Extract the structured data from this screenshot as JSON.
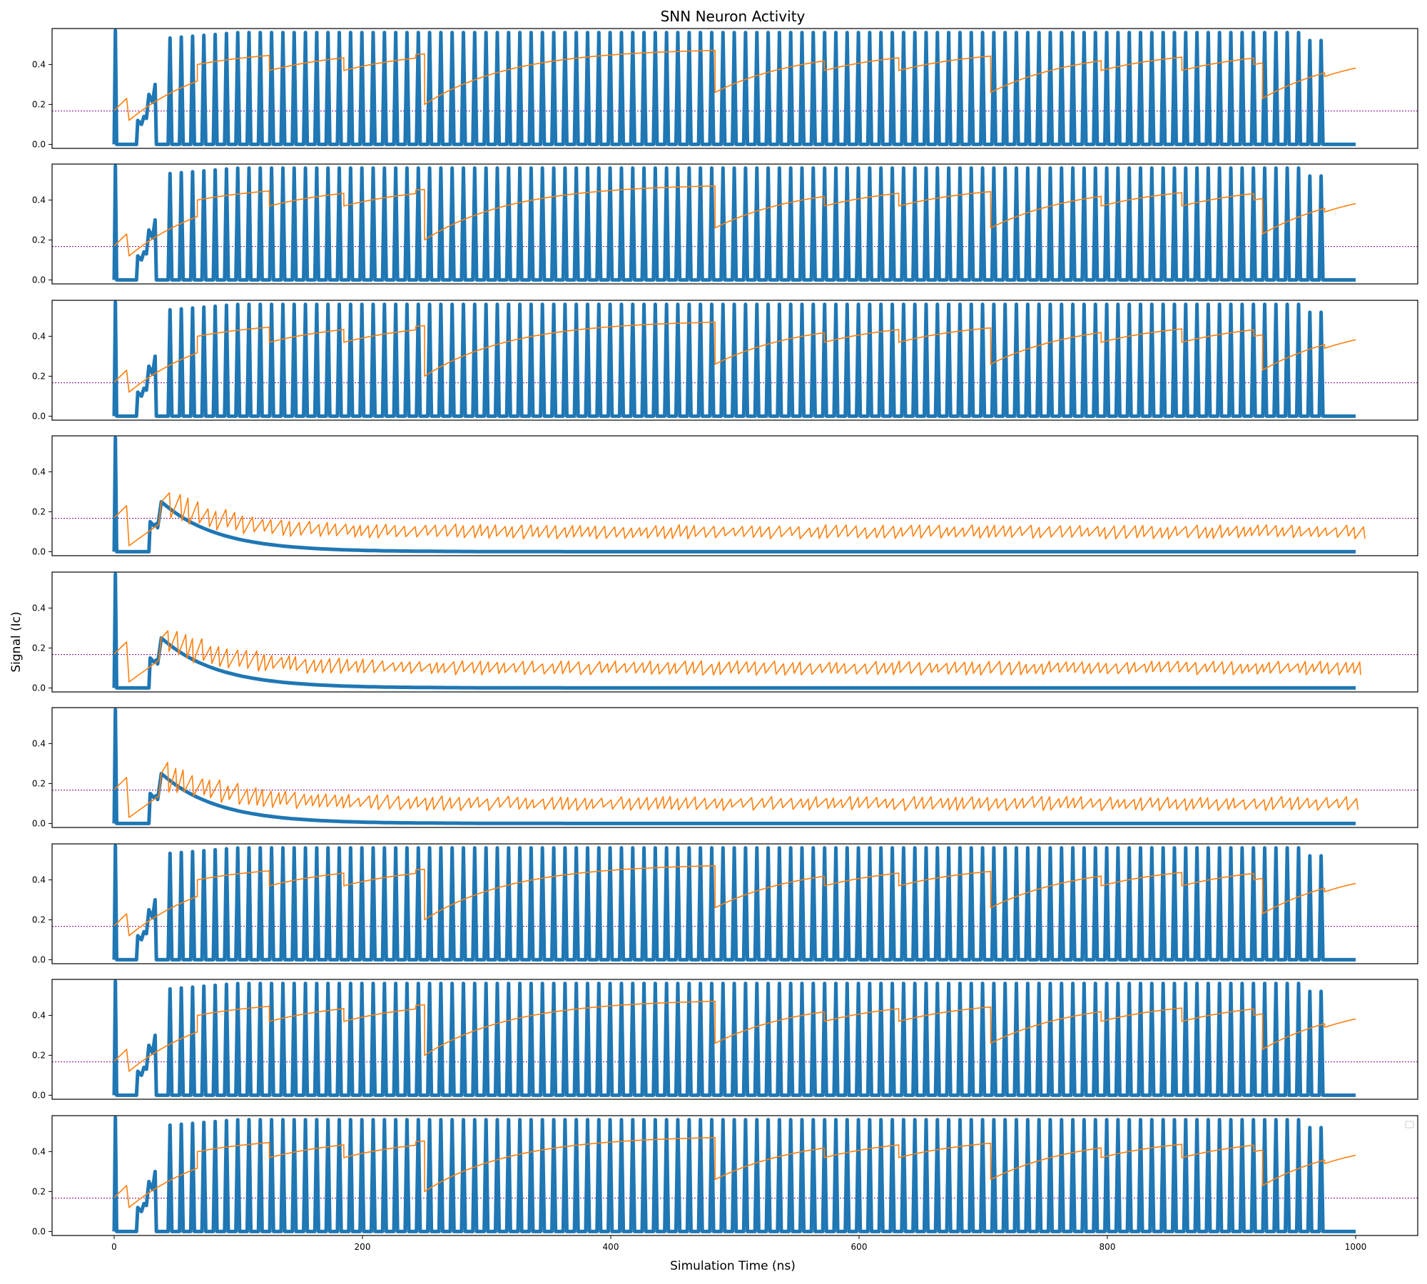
{
  "chart_data": {
    "type": "line",
    "title": "SNN Neuron Activity",
    "xlabel": "Simulation Time (ns)",
    "ylabel": "Signal (Ic)",
    "xlim": [
      -50,
      1050
    ],
    "ylim": [
      -0.02,
      0.58
    ],
    "x_ticks": [
      0,
      200,
      400,
      600,
      800,
      1000
    ],
    "y_ticks": [
      0.0,
      0.2,
      0.4
    ],
    "x_tick_labels": [
      "0",
      "200",
      "400",
      "600",
      "800",
      "1000"
    ],
    "y_tick_labels": [
      "0.0",
      "0.2",
      "0.4"
    ],
    "threshold": 0.167,
    "grid": false,
    "legend": "top-right (empty)",
    "colors": {
      "spikes": "#1f77b4",
      "membrane": "#ff7f0e",
      "threshold": "#800080"
    },
    "panels": [
      {
        "mode": "spiking",
        "first_spike_ns": 45,
        "period_ns": 9.09,
        "spike_end_ns": 980,
        "membrane_reset_ns": [
          67,
          125,
          185,
          243,
          250,
          484,
          572,
          632,
          706,
          795,
          860,
          918,
          925,
          975
        ]
      },
      {
        "mode": "spiking",
        "first_spike_ns": 45,
        "period_ns": 9.09,
        "spike_end_ns": 980,
        "membrane_reset_ns": [
          67,
          125,
          185,
          243,
          250,
          484,
          572,
          632,
          706,
          795,
          860,
          918,
          925,
          975
        ]
      },
      {
        "mode": "spiking",
        "first_spike_ns": 45,
        "period_ns": 9.09,
        "spike_end_ns": 980,
        "membrane_reset_ns": [
          67,
          125,
          185,
          243,
          250,
          484,
          572,
          632,
          706,
          795,
          860,
          918,
          925,
          975
        ]
      },
      {
        "mode": "decay",
        "peak_ns": 38,
        "peak_value": 0.25,
        "decay_tau_ns": 45
      },
      {
        "mode": "decay",
        "peak_ns": 38,
        "peak_value": 0.25,
        "decay_tau_ns": 45
      },
      {
        "mode": "decay",
        "peak_ns": 38,
        "peak_value": 0.25,
        "decay_tau_ns": 45
      },
      {
        "mode": "spiking",
        "first_spike_ns": 45,
        "period_ns": 9.09,
        "spike_end_ns": 980,
        "membrane_reset_ns": [
          67,
          125,
          185,
          243,
          250,
          484,
          572,
          632,
          706,
          795,
          860,
          918,
          925,
          975
        ]
      },
      {
        "mode": "spiking",
        "first_spike_ns": 45,
        "period_ns": 9.09,
        "spike_end_ns": 980,
        "membrane_reset_ns": [
          67,
          125,
          185,
          243,
          250,
          484,
          572,
          632,
          706,
          795,
          860,
          918,
          925,
          975
        ]
      },
      {
        "mode": "spiking",
        "first_spike_ns": 45,
        "period_ns": 9.09,
        "spike_end_ns": 980,
        "membrane_reset_ns": [
          67,
          125,
          185,
          243,
          250,
          484,
          572,
          632,
          706,
          795,
          860,
          918,
          925,
          975
        ]
      }
    ]
  }
}
